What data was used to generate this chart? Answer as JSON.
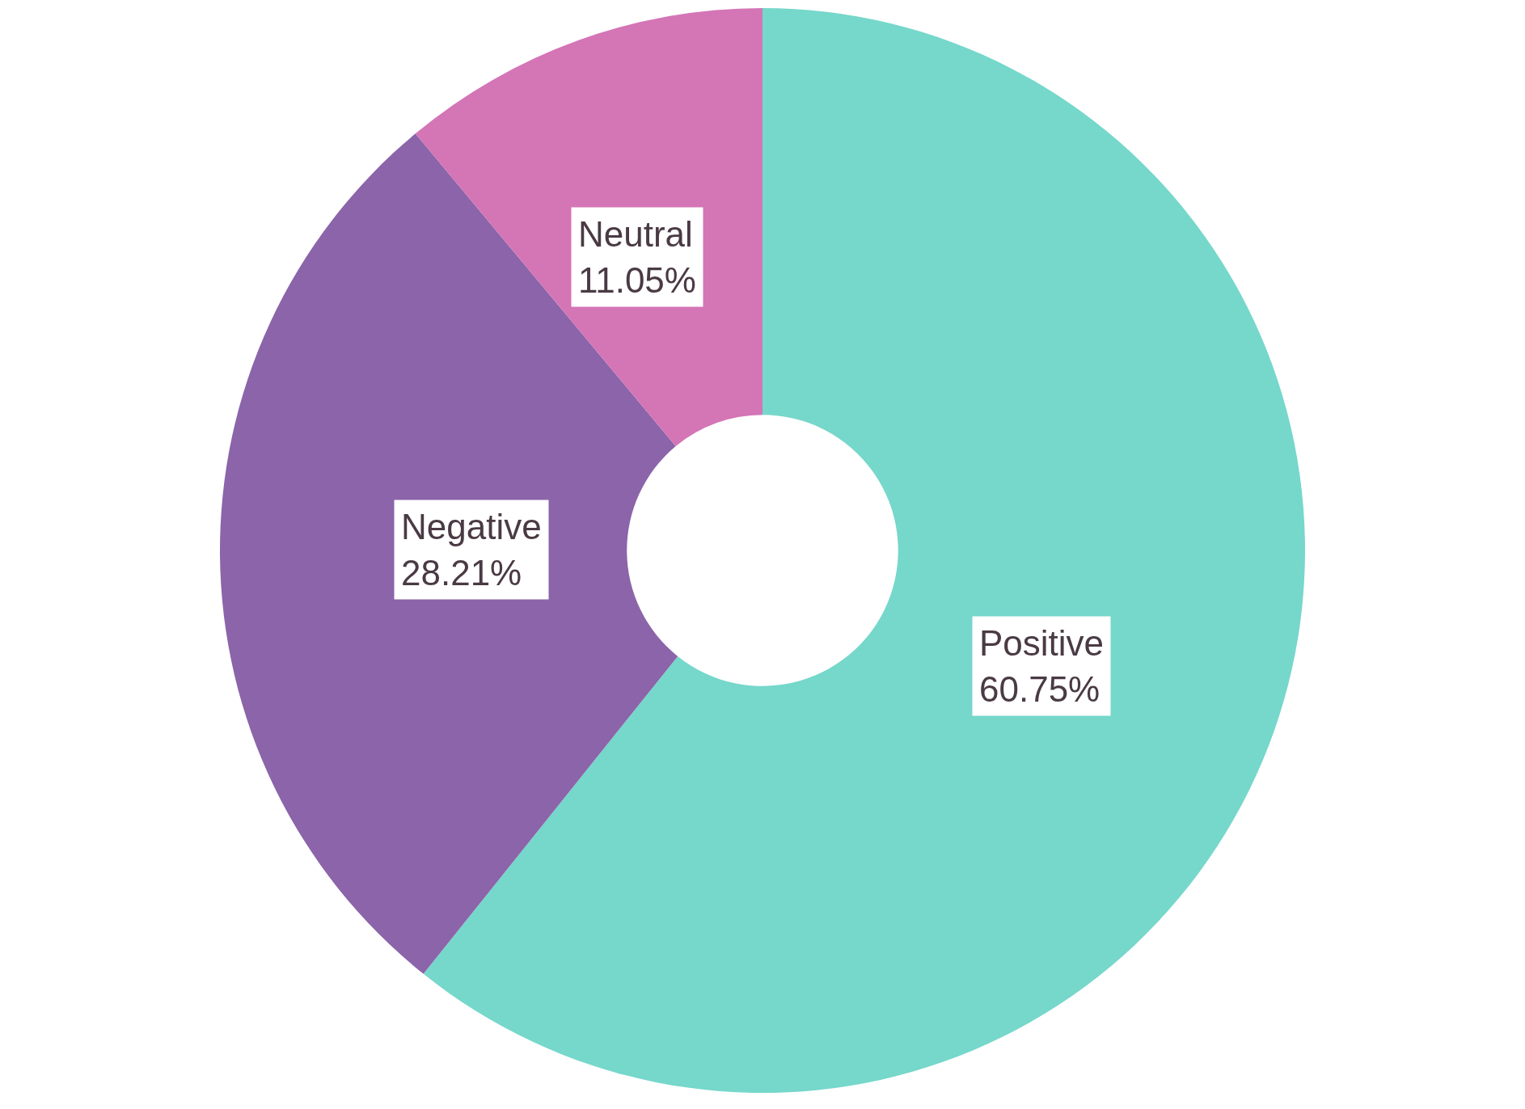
{
  "chart_data": {
    "type": "donut",
    "categories": [
      "Positive",
      "Negative",
      "Neutral"
    ],
    "values": [
      60.75,
      28.21,
      11.05
    ],
    "value_labels": [
      "60.75%",
      "28.21%",
      "11.05%"
    ],
    "colors": [
      "#76d7cb",
      "#8b64a9",
      "#d475b6"
    ],
    "legend": false
  }
}
